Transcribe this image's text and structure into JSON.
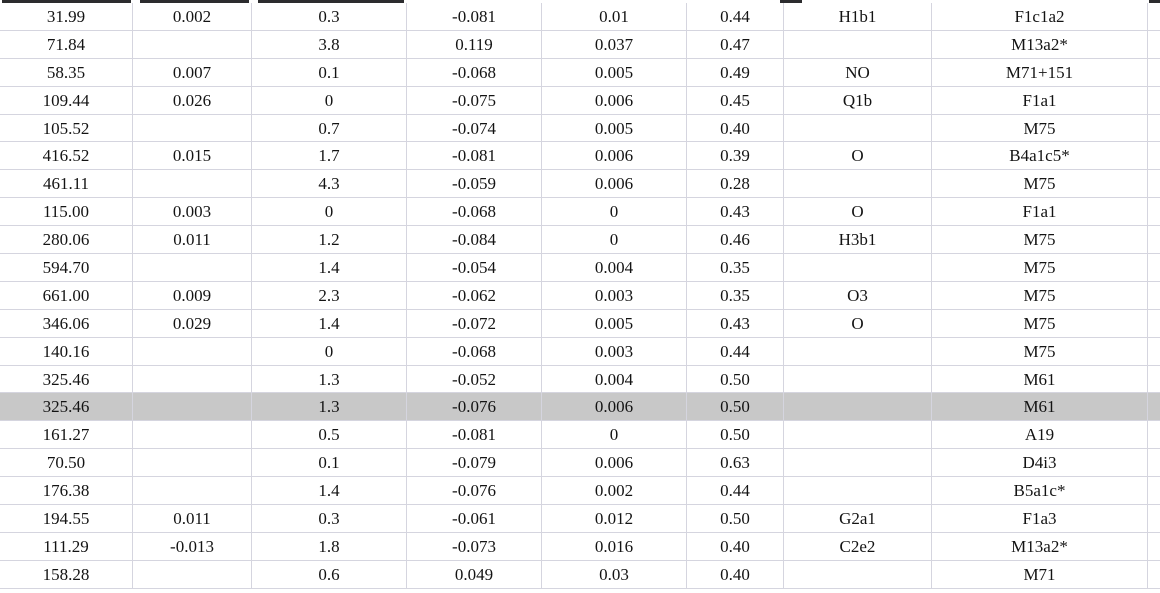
{
  "colors": {
    "background": "#ffffff",
    "text": "#131313",
    "grid_line": "#d5d5df",
    "row_highlight": "#c8c8c8",
    "cutoff_remnant": "#2c2c2e"
  },
  "table": {
    "highlighted_row_index": 14,
    "rows": [
      [
        "31.99",
        "0.002",
        "0.3",
        "-0.081",
        "0.01",
        "0.44",
        "H1b1",
        "F1c1a2"
      ],
      [
        "71.84",
        "",
        "3.8",
        "0.119",
        "0.037",
        "0.47",
        "",
        "M13a2*"
      ],
      [
        "58.35",
        "0.007",
        "0.1",
        "-0.068",
        "0.005",
        "0.49",
        "NO",
        "M71+151"
      ],
      [
        "109.44",
        "0.026",
        "0",
        "-0.075",
        "0.006",
        "0.45",
        "Q1b",
        "F1a1"
      ],
      [
        "105.52",
        "",
        "0.7",
        "-0.074",
        "0.005",
        "0.40",
        "",
        "M75"
      ],
      [
        "416.52",
        "0.015",
        "1.7",
        "-0.081",
        "0.006",
        "0.39",
        "O",
        "B4a1c5*"
      ],
      [
        "461.11",
        "",
        "4.3",
        "-0.059",
        "0.006",
        "0.28",
        "",
        "M75"
      ],
      [
        "115.00",
        "0.003",
        "0",
        "-0.068",
        "0",
        "0.43",
        "O",
        "F1a1"
      ],
      [
        "280.06",
        "0.011",
        "1.2",
        "-0.084",
        "0",
        "0.46",
        "H3b1",
        "M75"
      ],
      [
        "594.70",
        "",
        "1.4",
        "-0.054",
        "0.004",
        "0.35",
        "",
        "M75"
      ],
      [
        "661.00",
        "0.009",
        "2.3",
        "-0.062",
        "0.003",
        "0.35",
        "O3",
        "M75"
      ],
      [
        "346.06",
        "0.029",
        "1.4",
        "-0.072",
        "0.005",
        "0.43",
        "O",
        "M75"
      ],
      [
        "140.16",
        "",
        "0",
        "-0.068",
        "0.003",
        "0.44",
        "",
        "M75"
      ],
      [
        "325.46",
        "",
        "1.3",
        "-0.052",
        "0.004",
        "0.50",
        "",
        "M61"
      ],
      [
        "325.46",
        "",
        "1.3",
        "-0.076",
        "0.006",
        "0.50",
        "",
        "M61"
      ],
      [
        "161.27",
        "",
        "0.5",
        "-0.081",
        "0",
        "0.50",
        "",
        "A19"
      ],
      [
        "70.50",
        "",
        "0.1",
        "-0.079",
        "0.006",
        "0.63",
        "",
        "D4i3"
      ],
      [
        "176.38",
        "",
        "1.4",
        "-0.076",
        "0.002",
        "0.44",
        "",
        "B5a1c*"
      ],
      [
        "194.55",
        "0.011",
        "0.3",
        "-0.061",
        "0.012",
        "0.50",
        "G2a1",
        "F1a3"
      ],
      [
        "111.29",
        "-0.013",
        "1.8",
        "-0.073",
        "0.016",
        "0.40",
        "C2e2",
        "M13a2*"
      ],
      [
        "158.28",
        "",
        "0.6",
        "0.049",
        "0.03",
        "0.40",
        "",
        "M71"
      ]
    ]
  }
}
